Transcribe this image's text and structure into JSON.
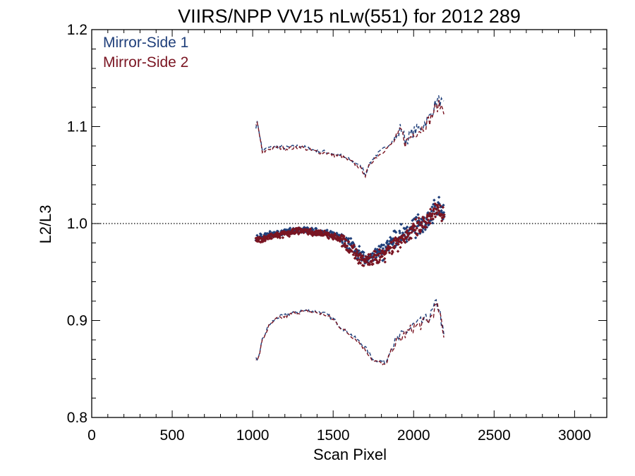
{
  "chart_data": {
    "type": "scatter",
    "title": "VIIRS/NPP VV15 nLw(551) for 2012 289",
    "xlabel": "Scan Pixel",
    "ylabel": "L2/L3",
    "xlim": [
      0,
      3200
    ],
    "ylim": [
      0.8,
      1.2
    ],
    "x_ticks": [
      "0",
      "500",
      "1000",
      "1500",
      "2000",
      "2500",
      "3000"
    ],
    "x_tick_values": [
      0,
      500,
      1000,
      1500,
      2000,
      2500,
      3000
    ],
    "y_ticks": [
      "0.8",
      "0.9",
      "1.0",
      "1.1",
      "1.2"
    ],
    "y_tick_values": [
      0.8,
      0.9,
      1.0,
      1.1,
      1.2
    ],
    "reference_line": 1.0,
    "grid": false,
    "legend_position": "top-left",
    "series": [
      {
        "name": "Mirror-Side 1",
        "color": "#1f3f7a",
        "mean": [
          [
            1020,
            0.985
          ],
          [
            1100,
            0.988
          ],
          [
            1200,
            0.991
          ],
          [
            1300,
            0.994
          ],
          [
            1400,
            0.992
          ],
          [
            1500,
            0.989
          ],
          [
            1580,
            0.982
          ],
          [
            1650,
            0.97
          ],
          [
            1700,
            0.963
          ],
          [
            1750,
            0.966
          ],
          [
            1800,
            0.971
          ],
          [
            1850,
            0.978
          ],
          [
            1900,
            0.985
          ],
          [
            1950,
            0.99
          ],
          [
            2000,
            0.995
          ],
          [
            2050,
            1.0
          ],
          [
            2100,
            1.007
          ],
          [
            2150,
            1.018
          ],
          [
            2190,
            1.012
          ]
        ],
        "upper": [
          [
            1020,
            1.1
          ],
          [
            1030,
            1.105
          ],
          [
            1060,
            1.075
          ],
          [
            1100,
            1.078
          ],
          [
            1150,
            1.08
          ],
          [
            1200,
            1.078
          ],
          [
            1250,
            1.079
          ],
          [
            1300,
            1.08
          ],
          [
            1350,
            1.077
          ],
          [
            1400,
            1.075
          ],
          [
            1450,
            1.074
          ],
          [
            1500,
            1.072
          ],
          [
            1550,
            1.07
          ],
          [
            1600,
            1.066
          ],
          [
            1650,
            1.062
          ],
          [
            1690,
            1.055
          ],
          [
            1700,
            1.05
          ],
          [
            1720,
            1.06
          ],
          [
            1750,
            1.068
          ],
          [
            1800,
            1.075
          ],
          [
            1850,
            1.082
          ],
          [
            1900,
            1.09
          ],
          [
            1920,
            1.1
          ],
          [
            1950,
            1.085
          ],
          [
            2000,
            1.095
          ],
          [
            2050,
            1.1
          ],
          [
            2100,
            1.11
          ],
          [
            2140,
            1.125
          ],
          [
            2160,
            1.128
          ],
          [
            2190,
            1.12
          ]
        ],
        "lower": [
          [
            1020,
            0.86
          ],
          [
            1030,
            0.858
          ],
          [
            1060,
            0.88
          ],
          [
            1100,
            0.895
          ],
          [
            1150,
            0.903
          ],
          [
            1200,
            0.905
          ],
          [
            1250,
            0.908
          ],
          [
            1300,
            0.91
          ],
          [
            1350,
            0.91
          ],
          [
            1400,
            0.909
          ],
          [
            1450,
            0.907
          ],
          [
            1500,
            0.902
          ],
          [
            1550,
            0.893
          ],
          [
            1600,
            0.887
          ],
          [
            1650,
            0.88
          ],
          [
            1700,
            0.872
          ],
          [
            1750,
            0.86
          ],
          [
            1800,
            0.858
          ],
          [
            1830,
            0.857
          ],
          [
            1850,
            0.868
          ],
          [
            1900,
            0.88
          ],
          [
            1950,
            0.888
          ],
          [
            2000,
            0.895
          ],
          [
            2050,
            0.898
          ],
          [
            2100,
            0.903
          ],
          [
            2140,
            0.918
          ],
          [
            2160,
            0.912
          ],
          [
            2190,
            0.88
          ]
        ]
      },
      {
        "name": "Mirror-Side 2",
        "color": "#7a1522",
        "mean": [
          [
            1020,
            0.982
          ],
          [
            1100,
            0.986
          ],
          [
            1200,
            0.989
          ],
          [
            1300,
            0.993
          ],
          [
            1400,
            0.99
          ],
          [
            1500,
            0.987
          ],
          [
            1580,
            0.98
          ],
          [
            1650,
            0.968
          ],
          [
            1700,
            0.96
          ],
          [
            1750,
            0.963
          ],
          [
            1800,
            0.968
          ],
          [
            1850,
            0.975
          ],
          [
            1900,
            0.982
          ],
          [
            1950,
            0.987
          ],
          [
            2000,
            0.992
          ],
          [
            2050,
            0.997
          ],
          [
            2100,
            1.004
          ],
          [
            2150,
            1.015
          ],
          [
            2190,
            1.009
          ]
        ],
        "upper": [
          [
            1020,
            1.101
          ],
          [
            1030,
            1.104
          ],
          [
            1060,
            1.073
          ],
          [
            1100,
            1.077
          ],
          [
            1150,
            1.079
          ],
          [
            1200,
            1.077
          ],
          [
            1250,
            1.078
          ],
          [
            1300,
            1.079
          ],
          [
            1350,
            1.076
          ],
          [
            1400,
            1.074
          ],
          [
            1450,
            1.073
          ],
          [
            1500,
            1.071
          ],
          [
            1550,
            1.069
          ],
          [
            1600,
            1.065
          ],
          [
            1650,
            1.06
          ],
          [
            1690,
            1.053
          ],
          [
            1700,
            1.049
          ],
          [
            1720,
            1.058
          ],
          [
            1750,
            1.066
          ],
          [
            1800,
            1.073
          ],
          [
            1850,
            1.08
          ],
          [
            1900,
            1.088
          ],
          [
            1920,
            1.098
          ],
          [
            1950,
            1.083
          ],
          [
            2000,
            1.093
          ],
          [
            2050,
            1.098
          ],
          [
            2100,
            1.107
          ],
          [
            2140,
            1.12
          ],
          [
            2160,
            1.122
          ],
          [
            2190,
            1.118
          ]
        ],
        "lower": [
          [
            1020,
            0.861
          ],
          [
            1030,
            0.857
          ],
          [
            1060,
            0.879
          ],
          [
            1100,
            0.894
          ],
          [
            1150,
            0.902
          ],
          [
            1200,
            0.904
          ],
          [
            1250,
            0.907
          ],
          [
            1300,
            0.909
          ],
          [
            1350,
            0.909
          ],
          [
            1400,
            0.908
          ],
          [
            1450,
            0.906
          ],
          [
            1500,
            0.901
          ],
          [
            1550,
            0.892
          ],
          [
            1600,
            0.886
          ],
          [
            1650,
            0.879
          ],
          [
            1700,
            0.87
          ],
          [
            1750,
            0.858
          ],
          [
            1800,
            0.856
          ],
          [
            1830,
            0.853
          ],
          [
            1850,
            0.866
          ],
          [
            1900,
            0.878
          ],
          [
            1950,
            0.886
          ],
          [
            2000,
            0.893
          ],
          [
            2050,
            0.896
          ],
          [
            2100,
            0.901
          ],
          [
            2140,
            0.915
          ],
          [
            2160,
            0.909
          ],
          [
            2190,
            0.879
          ]
        ]
      }
    ]
  }
}
